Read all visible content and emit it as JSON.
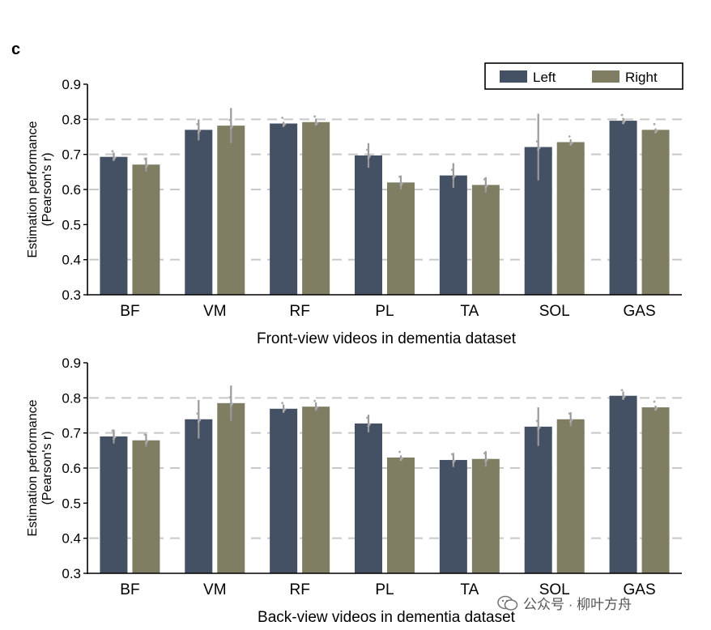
{
  "panel_label": "c",
  "legend": {
    "left": "Left",
    "right": "Right"
  },
  "colors": {
    "left": "#445064",
    "right": "#7f7e63",
    "error": "#9a9a9a",
    "grid": "#c8c8c8"
  },
  "watermark": "公众号 · 柳叶方舟",
  "chart_data": [
    {
      "type": "bar",
      "title": "",
      "xlabel": "Front-view videos in dementia dataset",
      "ylabel": "Estimation performance",
      "ylabel2": "(Pearson's r)",
      "ylim": [
        0.3,
        0.9
      ],
      "yticks": [
        "0.3",
        "0.4",
        "0.5",
        "0.6",
        "0.7",
        "0.8",
        "0.9"
      ],
      "grid": "dashed at 0.4, 0.6, 0.7, 0.8",
      "categories": [
        "BF",
        "VM",
        "RF",
        "PL",
        "TA",
        "SOL",
        "GAS"
      ],
      "series": [
        {
          "name": "Left",
          "values": [
            0.693,
            0.77,
            0.788,
            0.697,
            0.64,
            0.721,
            0.796
          ],
          "err": [
            0.012,
            0.03,
            0.005,
            0.035,
            0.035,
            0.095,
            0.008
          ]
        },
        {
          "name": "Right",
          "values": [
            0.671,
            0.782,
            0.792,
            0.62,
            0.613,
            0.735,
            0.77
          ],
          "err": [
            0.02,
            0.05,
            0.01,
            0.02,
            0.022,
            0.008,
            0.004
          ]
        }
      ]
    },
    {
      "type": "bar",
      "title": "",
      "xlabel": "Back-view videos in dementia dataset",
      "ylabel": "Estimation performance",
      "ylabel2": "(Pearson's r)",
      "ylim": [
        0.3,
        0.9
      ],
      "yticks": [
        "0.3",
        "0.4",
        "0.5",
        "0.6",
        "0.7",
        "0.8",
        "0.9"
      ],
      "grid": "dashed at 0.4, 0.6, 0.7, 0.8",
      "categories": [
        "BF",
        "VM",
        "RF",
        "PL",
        "TA",
        "SOL",
        "GAS"
      ],
      "series": [
        {
          "name": "Left",
          "values": [
            0.69,
            0.739,
            0.769,
            0.727,
            0.623,
            0.718,
            0.806
          ],
          "err": [
            0.02,
            0.055,
            0.012,
            0.025,
            0.02,
            0.055,
            0.012
          ]
        },
        {
          "name": "Right",
          "values": [
            0.679,
            0.785,
            0.775,
            0.63,
            0.626,
            0.739,
            0.773
          ],
          "err": [
            0.018,
            0.05,
            0.012,
            0.006,
            0.022,
            0.02,
            0.005
          ]
        }
      ]
    }
  ]
}
